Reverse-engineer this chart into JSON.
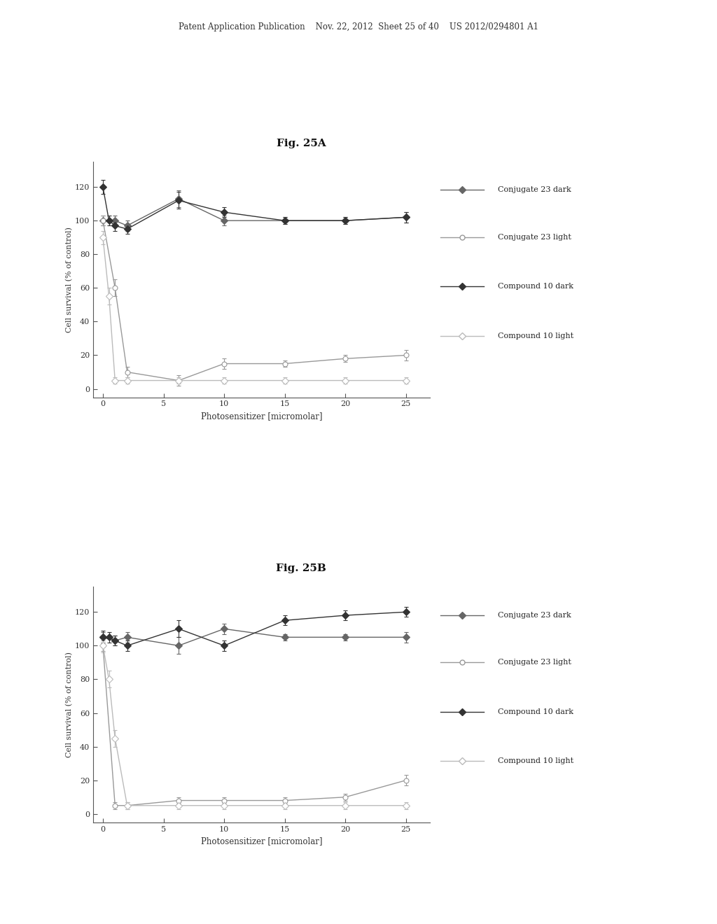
{
  "header_text": "Patent Application Publication    Nov. 22, 2012  Sheet 25 of 40    US 2012/0294801 A1",
  "fig_a_title": "Fig. 25A",
  "fig_b_title": "Fig. 25B",
  "xlabel": "Photosensitizer [micromolar]",
  "ylabel": "Cell survival (% of control)",
  "xlim": [
    -0.8,
    27
  ],
  "xticks": [
    0,
    5,
    10,
    15,
    20,
    25
  ],
  "ylim": [
    -5,
    135
  ],
  "yticks": [
    0,
    20,
    40,
    60,
    80,
    100,
    120
  ],
  "background_color": "#ffffff",
  "marker_size": 5,
  "line_width": 1.0,
  "errorbar_capsize": 2,
  "series_keys": [
    "conj23_dark",
    "conj23_light",
    "comp10_dark",
    "comp10_light"
  ],
  "fig_a": {
    "conj23_dark": {
      "x": [
        0,
        1,
        2,
        6.25,
        10,
        15,
        20,
        25
      ],
      "y": [
        100,
        100,
        97,
        113,
        100,
        100,
        100,
        102
      ],
      "yerr": [
        3,
        3,
        3,
        5,
        3,
        2,
        2,
        3
      ],
      "label_pre": "Conjugate ",
      "label_num": "23",
      "label_suf": " dark",
      "color": "#666666",
      "marker": "D",
      "filled": true
    },
    "conj23_light": {
      "x": [
        0,
        1,
        2,
        6.25,
        10,
        15,
        20,
        25
      ],
      "y": [
        100,
        60,
        10,
        5,
        15,
        15,
        18,
        20
      ],
      "yerr": [
        3,
        5,
        3,
        3,
        3,
        2,
        2,
        3
      ],
      "label_pre": "Conjugate ",
      "label_num": "23",
      "label_suf": " light",
      "color": "#999999",
      "marker": "o",
      "filled": false
    },
    "comp10_dark": {
      "x": [
        0,
        0.5,
        1,
        2,
        6.25,
        10,
        15,
        20,
        25
      ],
      "y": [
        120,
        100,
        97,
        95,
        112,
        105,
        100,
        100,
        102
      ],
      "yerr": [
        4,
        3,
        3,
        3,
        5,
        3,
        2,
        2,
        3
      ],
      "label_pre": "Compound ",
      "label_num": "10",
      "label_suf": " dark",
      "color": "#333333",
      "marker": "D",
      "filled": true
    },
    "comp10_light": {
      "x": [
        0,
        0.5,
        1,
        2,
        6.25,
        10,
        15,
        20,
        25
      ],
      "y": [
        90,
        55,
        5,
        5,
        5,
        5,
        5,
        5,
        5
      ],
      "yerr": [
        4,
        5,
        2,
        2,
        2,
        2,
        2,
        2,
        2
      ],
      "label_pre": "Compound ",
      "label_num": "10",
      "label_suf": " light",
      "color": "#bbbbbb",
      "marker": "D",
      "filled": false
    }
  },
  "fig_b": {
    "conj23_dark": {
      "x": [
        0,
        1,
        2,
        6.25,
        10,
        15,
        20,
        25
      ],
      "y": [
        105,
        103,
        105,
        100,
        110,
        105,
        105,
        105
      ],
      "yerr": [
        3,
        3,
        3,
        5,
        3,
        2,
        2,
        3
      ],
      "label_pre": "Conjugate ",
      "label_num": "23",
      "label_suf": " dark",
      "color": "#666666",
      "marker": "D",
      "filled": true
    },
    "conj23_light": {
      "x": [
        0,
        1,
        2,
        6.25,
        10,
        15,
        20,
        25
      ],
      "y": [
        100,
        5,
        5,
        8,
        8,
        8,
        10,
        20
      ],
      "yerr": [
        3,
        2,
        2,
        2,
        2,
        2,
        2,
        3
      ],
      "label_pre": "Conjugate ",
      "label_num": "23",
      "label_suf": " light",
      "color": "#999999",
      "marker": "o",
      "filled": false
    },
    "comp10_dark": {
      "x": [
        0,
        0.5,
        1,
        2,
        6.25,
        10,
        15,
        20,
        25
      ],
      "y": [
        105,
        105,
        103,
        100,
        110,
        100,
        115,
        118,
        120
      ],
      "yerr": [
        4,
        3,
        3,
        3,
        5,
        3,
        3,
        3,
        3
      ],
      "label_pre": "Compound ",
      "label_num": "10",
      "label_suf": " dark",
      "color": "#333333",
      "marker": "D",
      "filled": true
    },
    "comp10_light": {
      "x": [
        0,
        0.5,
        1,
        2,
        6.25,
        10,
        15,
        20,
        25
      ],
      "y": [
        100,
        80,
        45,
        5,
        5,
        5,
        5,
        5,
        5
      ],
      "yerr": [
        4,
        5,
        5,
        2,
        2,
        2,
        2,
        2,
        2
      ],
      "label_pre": "Compound ",
      "label_num": "10",
      "label_suf": " light",
      "color": "#bbbbbb",
      "marker": "D",
      "filled": false
    }
  }
}
